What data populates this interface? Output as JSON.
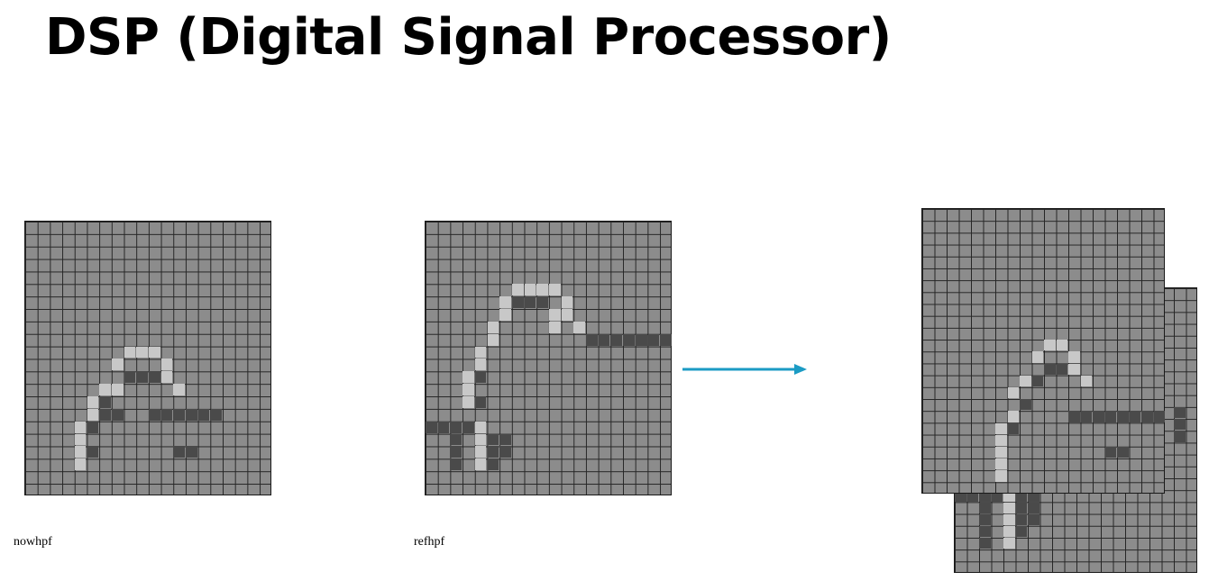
{
  "slide": {
    "title": "DSP (Digital Signal Processor)"
  },
  "panels": [
    {
      "caption": "nowhpf"
    },
    {
      "caption": "refhpf"
    },
    {
      "caption": ""
    }
  ],
  "colors": {
    "arrow": "#1b9bc4",
    "pixel_mid": "#8c8c8c",
    "pixel_light": "#c8c8c8",
    "pixel_dark": "#4a4a4a",
    "grid_line": "#262626"
  },
  "icons": {
    "arrow": "right-arrow-icon"
  }
}
